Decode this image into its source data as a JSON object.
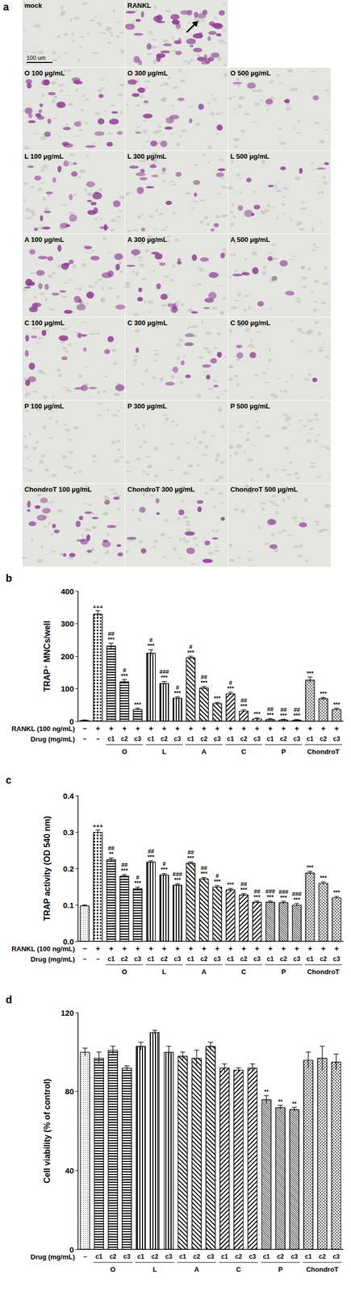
{
  "panel_a": {
    "label": "a",
    "scale_bar": "100 um",
    "rows": [
      [
        "mock",
        "RANKL"
      ],
      [
        "O 100 µg/mL",
        "O 300 µg/mL",
        "O 500 µg/mL"
      ],
      [
        "L 100 µg/mL",
        "L 300 µg/mL",
        "L 500 µg/mL"
      ],
      [
        "A 100 µg/mL",
        "A 300 µg/mL",
        "A 500 µg/mL"
      ],
      [
        "C 100 µg/mL",
        "C 300 µg/mL",
        "C 500 µg/mL"
      ],
      [
        "P 100 µg/mL",
        "P 300 µg/mL",
        "P 500 µg/mL"
      ],
      [
        "ChondroT 100 µg/mL",
        "ChondroT 300 µg/mL",
        "ChondroT 500 µg/mL"
      ]
    ]
  },
  "chart_data": [
    {
      "type": "bar",
      "title": "b",
      "y_label": "TRAP⁺ MNCs/well",
      "x_label": "Drug (mg/mL)",
      "rankl_label": "RANKL (100 ng/mL)",
      "rankl": [
        "−",
        "+",
        "+",
        "+",
        "+",
        "+",
        "+",
        "+",
        "+",
        "+",
        "+",
        "+",
        "+",
        "+",
        "+",
        "+",
        "+",
        "+",
        "+",
        "+"
      ],
      "categories": [
        "−",
        "−",
        "c1",
        "c2",
        "c3",
        "c1",
        "c2",
        "c3",
        "c1",
        "c2",
        "c3",
        "c1",
        "c2",
        "c3",
        "c1",
        "c2",
        "c3",
        "c1",
        "c2",
        "c3"
      ],
      "groups": [
        null,
        null,
        "O",
        "O",
        "O",
        "L",
        "L",
        "L",
        "A",
        "A",
        "A",
        "C",
        "C",
        "C",
        "P",
        "P",
        "P",
        "ChondroT",
        "ChondroT",
        "ChondroT"
      ],
      "values": [
        3,
        330,
        232,
        122,
        37,
        210,
        117,
        72,
        196,
        103,
        55,
        85,
        32,
        8,
        6,
        5,
        4,
        127,
        70,
        37
      ],
      "errors": [
        1,
        10,
        8,
        6,
        3,
        10,
        5,
        3,
        4,
        4,
        3,
        4,
        3,
        2,
        2,
        1,
        1,
        9,
        3,
        3
      ],
      "annotations": [
        [],
        [
          "+++"
        ],
        [
          "##",
          "***"
        ],
        [
          "#",
          "***"
        ],
        [
          "***"
        ],
        [
          "#",
          "***"
        ],
        [
          "###",
          "***"
        ],
        [
          "#",
          "***"
        ],
        [
          "#",
          "***"
        ],
        [
          "##",
          "***"
        ],
        [
          "***"
        ],
        [
          "#",
          "***"
        ],
        [
          "##",
          "***"
        ],
        [
          "***"
        ],
        [
          "##",
          "***"
        ],
        [
          "##",
          "***"
        ],
        [
          "##",
          "***"
        ],
        [
          "***"
        ],
        [
          "***"
        ],
        [
          "***"
        ]
      ],
      "color": "#000000",
      "ylim": [
        0,
        400
      ],
      "yticks": [
        0,
        100,
        200,
        300,
        400
      ],
      "grid": false
    },
    {
      "type": "bar",
      "title": "c",
      "y_label": "TRAP activity (OD 540 nm)",
      "x_label": "Drug (mg/mL)",
      "rankl_label": "RANKL (100 ng/mL)",
      "rankl": [
        "−",
        "+",
        "+",
        "+",
        "+",
        "+",
        "+",
        "+",
        "+",
        "+",
        "+",
        "+",
        "+",
        "+",
        "+",
        "+",
        "+",
        "+",
        "+",
        "+"
      ],
      "categories": [
        "−",
        "−",
        "c1",
        "c2",
        "c3",
        "c1",
        "c2",
        "c3",
        "c1",
        "c2",
        "c3",
        "c1",
        "c2",
        "c3",
        "c1",
        "c2",
        "c3",
        "c1",
        "c2",
        "c3"
      ],
      "groups": [
        null,
        null,
        "O",
        "O",
        "O",
        "L",
        "L",
        "L",
        "A",
        "A",
        "A",
        "C",
        "C",
        "C",
        "P",
        "P",
        "P",
        "ChondroT",
        "ChondroT",
        "ChondroT"
      ],
      "values": [
        0.098,
        0.3,
        0.225,
        0.18,
        0.145,
        0.218,
        0.183,
        0.155,
        0.215,
        0.172,
        0.15,
        0.142,
        0.128,
        0.108,
        0.108,
        0.107,
        0.1,
        0.188,
        0.16,
        0.12
      ],
      "errors": [
        0.002,
        0.006,
        0.004,
        0.003,
        0.004,
        0.003,
        0.003,
        0.003,
        0.003,
        0.003,
        0.003,
        0.003,
        0.003,
        0.003,
        0.003,
        0.003,
        0.004,
        0.004,
        0.003,
        0.003
      ],
      "annotations": [
        [],
        [
          "+++"
        ],
        [
          "##",
          "**"
        ],
        [
          "##",
          "***"
        ],
        [
          "#",
          "***"
        ],
        [
          "##",
          "***"
        ],
        [
          "#",
          "***"
        ],
        [
          "###",
          "***"
        ],
        [
          "##",
          "***"
        ],
        [
          "##",
          "***"
        ],
        [
          "#",
          "***"
        ],
        [
          "***"
        ],
        [
          "##",
          "***"
        ],
        [
          "##",
          "***"
        ],
        [
          "###",
          "***"
        ],
        [
          "###",
          "***"
        ],
        [
          "###",
          "***"
        ],
        [
          "***"
        ],
        [
          "***"
        ],
        [
          "***"
        ]
      ],
      "color": "#000000",
      "ylim": [
        0,
        0.4
      ],
      "yticks": [
        {
          "value": 0,
          "label": "0.0"
        },
        0.1,
        0.2,
        0.3,
        0.4
      ],
      "grid": false
    },
    {
      "type": "bar",
      "title": "d",
      "y_label": "Cell viability (% of control)",
      "x_label": "Drug (mg/mL)",
      "categories": [
        "−",
        "c1",
        "c2",
        "c3",
        "c1",
        "c2",
        "c3",
        "c1",
        "c2",
        "c3",
        "c1",
        "c2",
        "c3",
        "c1",
        "c2",
        "c3",
        "c1",
        "c2",
        "c3"
      ],
      "groups": [
        null,
        "O",
        "O",
        "O",
        "L",
        "L",
        "L",
        "A",
        "A",
        "A",
        "C",
        "C",
        "C",
        "P",
        "P",
        "P",
        "ChondroT",
        "ChondroT",
        "ChondroT"
      ],
      "values": [
        100,
        97,
        101,
        92,
        103,
        110,
        100,
        98,
        97,
        103,
        92,
        91,
        92,
        76,
        72,
        71,
        96,
        97,
        95
      ],
      "errors": [
        2,
        3,
        2,
        1,
        2,
        1,
        3,
        2,
        4,
        2,
        2,
        1,
        2,
        2,
        1,
        1,
        4,
        6,
        4
      ],
      "annotations": [
        [],
        [],
        [],
        [],
        [],
        [],
        [],
        [],
        [],
        [],
        [],
        [],
        [],
        [
          "**"
        ],
        [
          "**"
        ],
        [
          "**"
        ],
        [],
        [],
        []
      ],
      "color": "#000000",
      "ylim": [
        0,
        120
      ],
      "yticks": [
        0,
        40,
        80,
        120
      ],
      "grid": false
    }
  ]
}
